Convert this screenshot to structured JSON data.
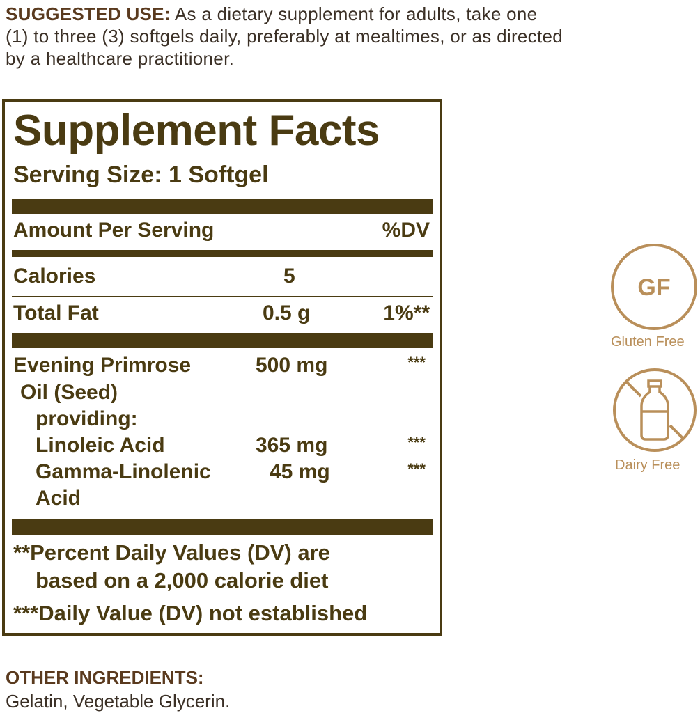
{
  "suggested_use": {
    "label": "SUGGESTED USE:",
    "text": "As a dietary supplement for adults, take one (1) to three (3) softgels daily, preferably at mealtimes, or as directed by a healthcare practitioner."
  },
  "facts": {
    "title": "Supplement Facts",
    "serving_size": "Serving Size: 1 Softgel",
    "header": {
      "amount": "Amount Per Serving",
      "dv": "%DV"
    },
    "rows": [
      {
        "name": "Calories",
        "amount": "5",
        "dv": ""
      },
      {
        "name": "Total Fat",
        "amount": "0.5 g",
        "dv": "1%**"
      },
      {
        "name": "Evening Primrose",
        "amount": "500 mg",
        "dv": "***"
      },
      {
        "name": "Oil (Seed)",
        "amount": "",
        "dv": ""
      },
      {
        "name": "providing:",
        "amount": "",
        "dv": ""
      },
      {
        "name": "Linoleic Acid",
        "amount": "365 mg",
        "dv": "***"
      },
      {
        "name": "Gamma-Linolenic",
        "amount": "45 mg",
        "dv": "***"
      },
      {
        "name": "Acid",
        "amount": "",
        "dv": ""
      }
    ],
    "footnotes": [
      "**Percent Daily Values (DV) are",
      "based on a 2,000 calorie diet",
      "***Daily Value (DV) not established"
    ]
  },
  "badges": [
    {
      "icon": "gluten-free-icon",
      "text": "GF",
      "label": "Gluten Free"
    },
    {
      "icon": "dairy-free-icon",
      "label": "Dairy Free"
    }
  ],
  "colors": {
    "label": "#4a3b12",
    "heading": "#5a3a1e",
    "badge": "#b98f5a"
  },
  "other_ingredients": {
    "label": "OTHER INGREDIENTS:",
    "text": "Gelatin, Vegetable Glycerin."
  }
}
